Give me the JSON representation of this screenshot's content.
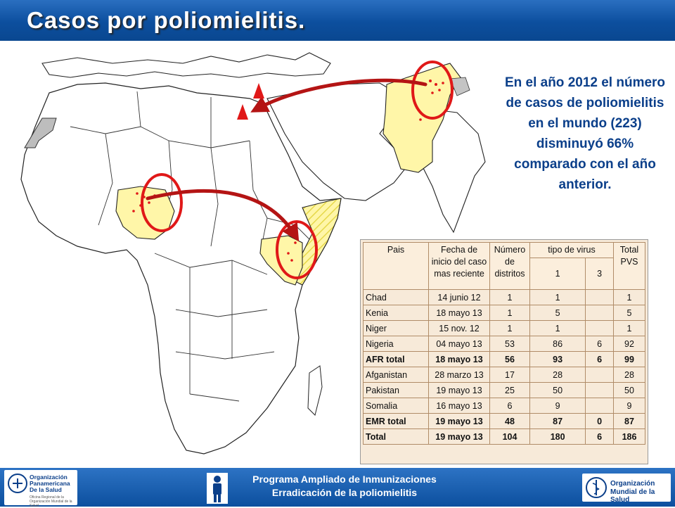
{
  "title": "Casos por poliomielitis.",
  "note": "En el año 2012 el número de casos de poliomielitis en el mundo (223) disminuyó 66% comparado con el año anterior.",
  "table": {
    "headers": {
      "pais": "Pais",
      "fecha": "Fecha de inicio del caso mas reciente",
      "distritos": "Número de distritos",
      "tipo": "tipo de virus",
      "tipo1": "1",
      "tipo3": "3",
      "total": "Total PVS"
    },
    "rows": [
      {
        "pais": "Chad",
        "fecha": "14 junio 12",
        "distritos": "1",
        "v1": "1",
        "v3": "",
        "total": "1",
        "bold": false
      },
      {
        "pais": "Kenia",
        "fecha": "18 mayo 13",
        "distritos": "1",
        "v1": "5",
        "v3": "",
        "total": "5",
        "bold": false
      },
      {
        "pais": "Niger",
        "fecha": "15 nov. 12",
        "distritos": "1",
        "v1": "1",
        "v3": "",
        "total": "1",
        "bold": false
      },
      {
        "pais": "Nigeria",
        "fecha": "04 mayo 13",
        "distritos": "53",
        "v1": "86",
        "v3": "6",
        "total": "92",
        "bold": false
      },
      {
        "pais": "AFR total",
        "fecha": "18 mayo 13",
        "distritos": "56",
        "v1": "93",
        "v3": "6",
        "total": "99",
        "bold": true
      },
      {
        "pais": "Afganistan",
        "fecha": "28 marzo 13",
        "distritos": "17",
        "v1": "28",
        "v3": "",
        "total": "28",
        "bold": false
      },
      {
        "pais": "Pakistan",
        "fecha": "19 mayo 13",
        "distritos": "25",
        "v1": "50",
        "v3": "",
        "total": "50",
        "bold": false
      },
      {
        "pais": "Somalia",
        "fecha": "16 mayo 13",
        "distritos": "6",
        "v1": "9",
        "v3": "",
        "total": "9",
        "bold": false
      },
      {
        "pais": "EMR total",
        "fecha": "19 mayo 13",
        "distritos": "48",
        "v1": "87",
        "v3": "0",
        "total": "87",
        "bold": true
      },
      {
        "pais": "Total",
        "fecha": "19 mayo 13",
        "distritos": "104",
        "v1": "180",
        "v3": "6",
        "total": "186",
        "bold": true
      }
    ]
  },
  "footer": {
    "line1": "Programa Ampliado de Inmunizaciones",
    "line2": "Erradicación de la poliomielitis"
  },
  "logos": {
    "paho_l1": "Organización",
    "paho_l2": "Panamericana",
    "paho_l3": "De la Salud",
    "paho_small1": "Oficina Regional de la",
    "paho_small2": "Organización Mundial de la Salud",
    "who_l1": "Organización",
    "who_l2": "Mundial de la Salud"
  },
  "colors": {
    "header_blue": "#0c4f9e",
    "note_text": "#0b3f8a",
    "affected_country": "#fff6a8",
    "marker_red": "#e01818",
    "arrow_red": "#b41414",
    "table_bg": "#f7ead9"
  }
}
